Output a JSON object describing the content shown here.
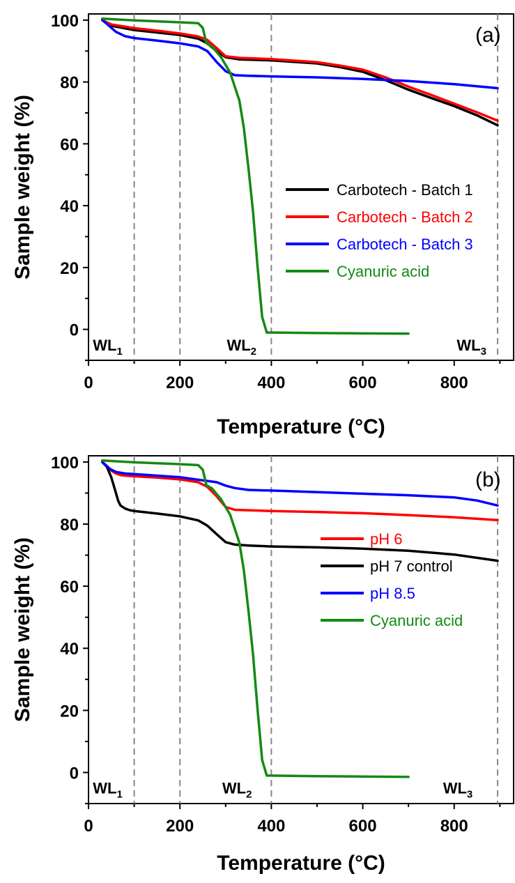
{
  "chart_data": [
    {
      "type": "line",
      "panel_label": "(a)",
      "xlabel": "Temperature (°C)",
      "ylabel": "Sample weight (%)",
      "xlim": [
        0,
        930
      ],
      "ylim": [
        -10,
        102
      ],
      "xticks": [
        0,
        200,
        400,
        600,
        800
      ],
      "yticks": [
        0,
        20,
        40,
        60,
        80,
        100
      ],
      "vlines": [
        100,
        200,
        400,
        895
      ],
      "region_labels": [
        {
          "main": "WL",
          "sub": "1",
          "x": 42,
          "y": -5
        },
        {
          "main": "WL",
          "sub": "2",
          "x": 335,
          "y": -5
        },
        {
          "main": "WL",
          "sub": "3",
          "x": 838,
          "y": -5
        }
      ],
      "legend_position": "center-right",
      "series": [
        {
          "name": "Carbotech - Batch 1",
          "color": "#000000",
          "x": [
            30,
            50,
            100,
            150,
            200,
            240,
            260,
            280,
            300,
            330,
            400,
            500,
            550,
            600,
            650,
            700,
            750,
            800,
            850,
            895
          ],
          "y": [
            100,
            98.2,
            96.8,
            96,
            95.2,
            94,
            92.5,
            90,
            88,
            87.3,
            87,
            86,
            84.8,
            83.3,
            80.6,
            77.5,
            74.8,
            72.2,
            69.2,
            66
          ]
        },
        {
          "name": "Carbotech - Batch 2",
          "color": "#ff0000",
          "x": [
            30,
            50,
            100,
            150,
            200,
            240,
            260,
            280,
            300,
            330,
            400,
            500,
            550,
            600,
            650,
            700,
            750,
            800,
            850,
            895
          ],
          "y": [
            100,
            98.6,
            97.4,
            96.6,
            95.7,
            94.7,
            93.6,
            91,
            88.3,
            87.8,
            87.4,
            86.4,
            85.3,
            84,
            81.5,
            78.5,
            75.8,
            73,
            70.2,
            67.5
          ]
        },
        {
          "name": "Carbotech - Batch 3",
          "color": "#0000ff",
          "x": [
            30,
            40,
            60,
            80,
            100,
            150,
            200,
            240,
            260,
            280,
            300,
            320,
            350,
            400,
            500,
            600,
            700,
            800,
            895
          ],
          "y": [
            100,
            98.8,
            96.2,
            94.8,
            94.2,
            93.4,
            92.5,
            91.5,
            90,
            86.5,
            83.5,
            82.2,
            82,
            81.8,
            81.5,
            81,
            80.3,
            79.3,
            78
          ]
        },
        {
          "name": "Cyanuric acid",
          "color": "#138a13",
          "x": [
            30,
            100,
            200,
            240,
            250,
            258,
            270,
            290,
            310,
            330,
            340,
            350,
            360,
            370,
            380,
            390,
            400,
            500,
            600,
            700
          ],
          "y": [
            100.5,
            99.9,
            99.3,
            99,
            97.5,
            92.5,
            91.5,
            88,
            83,
            74,
            65,
            52,
            38,
            20,
            4,
            -1,
            -1,
            -1.2,
            -1.3,
            -1.4
          ]
        }
      ]
    },
    {
      "type": "line",
      "panel_label": "(b)",
      "xlabel": "Temperature (°C)",
      "ylabel": "Sample weight (%)",
      "xlim": [
        0,
        930
      ],
      "ylim": [
        -10,
        102
      ],
      "xticks": [
        0,
        200,
        400,
        600,
        800
      ],
      "yticks": [
        0,
        20,
        40,
        60,
        80,
        100
      ],
      "vlines": [
        100,
        200,
        400,
        895
      ],
      "region_labels": [
        {
          "main": "WL",
          "sub": "1",
          "x": 42,
          "y": -5
        },
        {
          "main": "WL",
          "sub": "2",
          "x": 325,
          "y": -5
        },
        {
          "main": "WL",
          "sub": "3",
          "x": 808,
          "y": -5
        }
      ],
      "legend_position": "lower-right",
      "series": [
        {
          "name": "pH 6",
          "color": "#ff0000",
          "x": [
            30,
            40,
            50,
            60,
            70,
            80,
            100,
            150,
            200,
            240,
            260,
            280,
            300,
            320,
            400,
            500,
            600,
            700,
            800,
            895
          ],
          "y": [
            100,
            98.8,
            97.2,
            96.3,
            95.8,
            95.6,
            95.4,
            95,
            94.4,
            93.5,
            92,
            89,
            85.5,
            84.6,
            84.2,
            83.9,
            83.5,
            82.9,
            82.2,
            81.3
          ]
        },
        {
          "name": "pH 7 control",
          "color": "#000000",
          "x": [
            30,
            40,
            50,
            60,
            65,
            70,
            80,
            90,
            100,
            150,
            200,
            240,
            260,
            280,
            300,
            320,
            350,
            400,
            500,
            600,
            700,
            800,
            895
          ],
          "y": [
            100,
            98.5,
            95,
            90,
            87.5,
            86,
            85,
            84.5,
            84.2,
            83.4,
            82.5,
            81.2,
            79.5,
            76.8,
            74.2,
            73.4,
            73.1,
            72.8,
            72.5,
            72.1,
            71.4,
            70.2,
            68.2
          ]
        },
        {
          "name": "pH 8.5",
          "color": "#0000ff",
          "x": [
            30,
            40,
            50,
            60,
            80,
            100,
            150,
            200,
            240,
            260,
            280,
            300,
            320,
            350,
            400,
            500,
            600,
            700,
            800,
            850,
            895
          ],
          "y": [
            100,
            98.6,
            97.5,
            96.8,
            96.3,
            96.1,
            95.6,
            95.1,
            94.3,
            93.9,
            93.5,
            92.4,
            91.6,
            91,
            90.8,
            90.3,
            89.8,
            89.3,
            88.6,
            87.6,
            86
          ]
        },
        {
          "name": "Cyanuric acid",
          "color": "#138a13",
          "x": [
            30,
            100,
            200,
            240,
            250,
            258,
            270,
            290,
            310,
            330,
            340,
            350,
            360,
            370,
            380,
            390,
            400,
            500,
            600,
            700
          ],
          "y": [
            100.5,
            99.9,
            99.3,
            99,
            97.5,
            92.5,
            91.5,
            88,
            83,
            74,
            65,
            52,
            38,
            20,
            4,
            -1,
            -1,
            -1.2,
            -1.3,
            -1.4
          ]
        }
      ]
    }
  ]
}
